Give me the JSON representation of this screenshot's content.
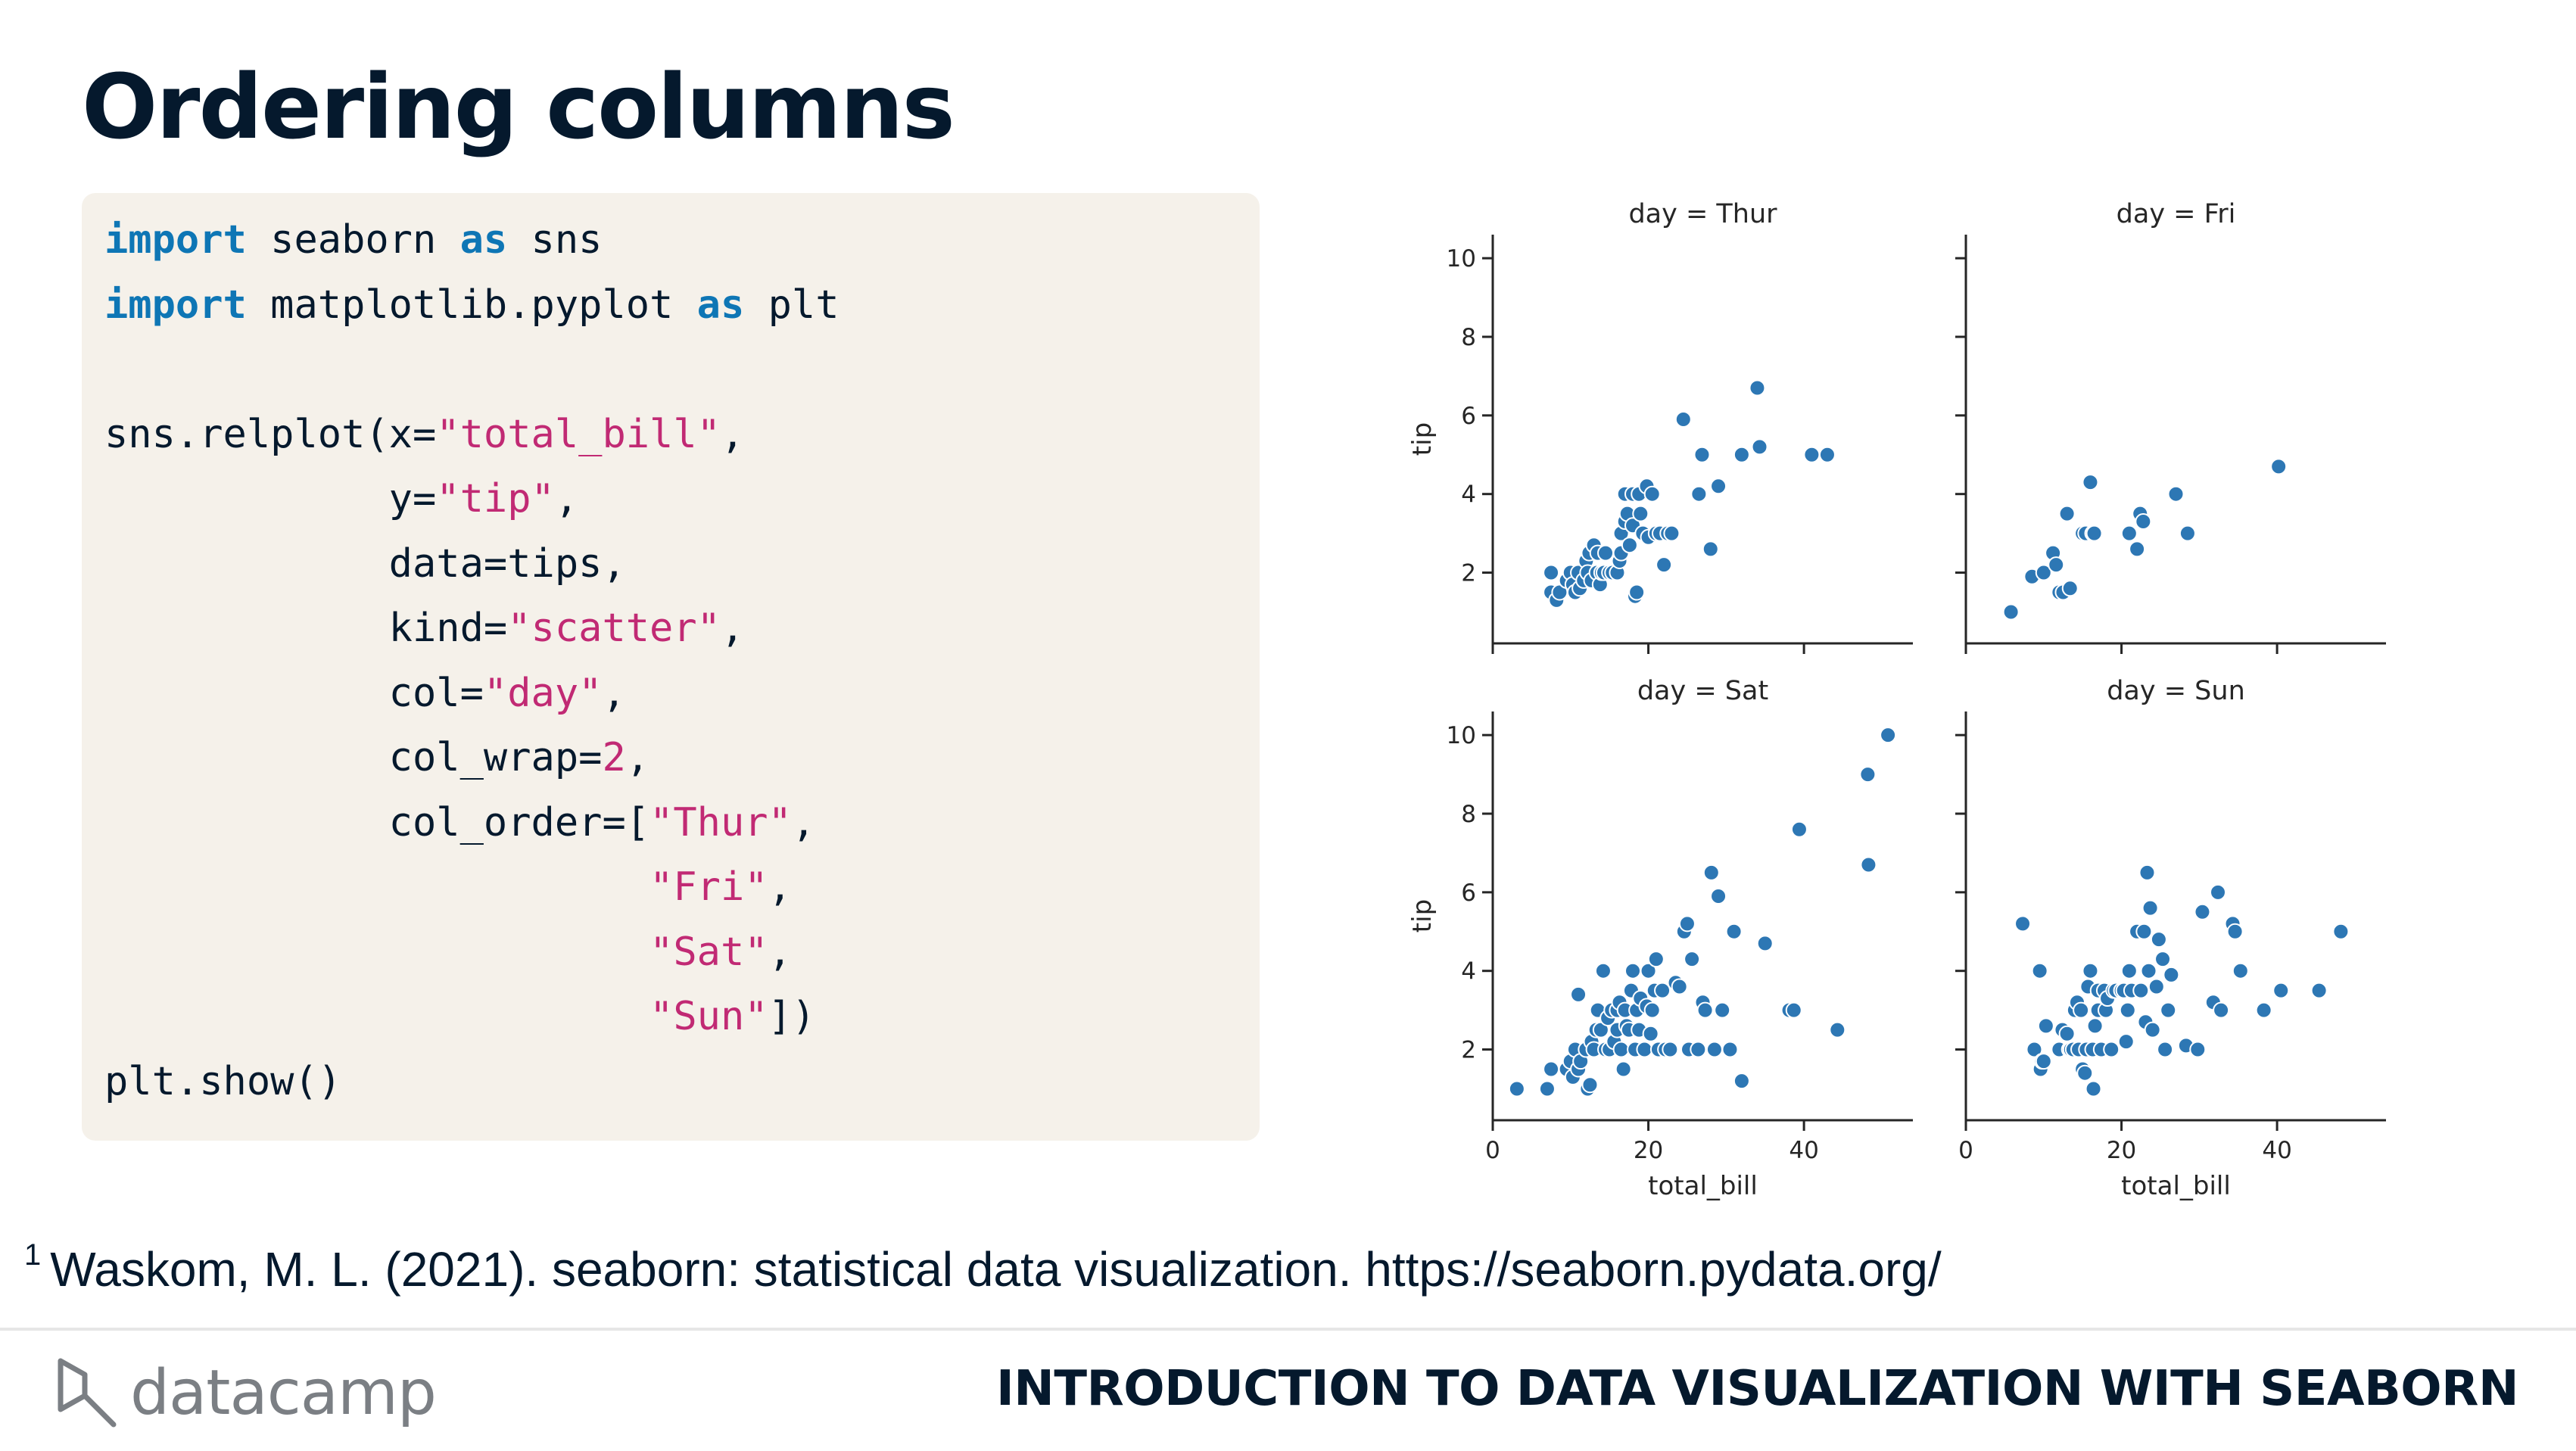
{
  "slide": {
    "title": "Ordering columns",
    "footnote_marker": "1",
    "footnote": "Waskom, M. L. (2021). seaborn: statistical data visualization. https://seaborn.pydata.org/",
    "brand": "datacamp",
    "course": "INTRODUCTION TO DATA VISUALIZATION WITH SEABORN"
  },
  "code": {
    "line1": {
      "kw1": "import",
      "mod": " seaborn ",
      "kw2": "as",
      "alias": " sns"
    },
    "line2": {
      "kw1": "import",
      "mod": " matplotlib.pyplot ",
      "kw2": "as",
      "alias": " plt"
    },
    "line3": {
      "a": "sns.relplot(x=",
      "s": "\"total_bill\"",
      "b": ","
    },
    "line4": {
      "a": "            y=",
      "s": "\"tip\"",
      "b": ","
    },
    "line5": {
      "a": "            data=tips,"
    },
    "line6": {
      "a": "            kind=",
      "s": "\"scatter\"",
      "b": ","
    },
    "line7": {
      "a": "            col=",
      "s": "\"day\"",
      "b": ","
    },
    "line8": {
      "a": "            col_wrap=",
      "n": "2",
      "b": ","
    },
    "line9": {
      "a": "            col_order=[",
      "s": "\"Thur\"",
      "b": ","
    },
    "line10": {
      "a": "                       ",
      "s": "\"Fri\"",
      "b": ","
    },
    "line11": {
      "a": "                       ",
      "s": "\"Sat\"",
      "b": ","
    },
    "line12": {
      "a": "                       ",
      "s": "\"Sun\"",
      "b": "])"
    },
    "line13": {
      "a": "plt.show()"
    }
  },
  "chart_data": {
    "type": "scatter",
    "xlabel": "total_bill",
    "ylabel": "tip",
    "xlim": [
      0,
      54
    ],
    "ylim": [
      0.2,
      10.6
    ],
    "xticks": [
      0,
      20,
      40
    ],
    "yticks": [
      2,
      4,
      6,
      8,
      10
    ],
    "grid": false,
    "point_color": "#2d77b4",
    "panels": [
      {
        "title": "day = Thur",
        "points": [
          [
            7.5,
            2.0
          ],
          [
            7.5,
            1.5
          ],
          [
            8.2,
            1.3
          ],
          [
            8.6,
            1.5
          ],
          [
            9.5,
            1.8
          ],
          [
            10,
            2.0
          ],
          [
            10.3,
            1.7
          ],
          [
            10.6,
            1.5
          ],
          [
            11,
            2.0
          ],
          [
            11.2,
            1.6
          ],
          [
            11.7,
            1.8
          ],
          [
            12,
            2.3
          ],
          [
            12.2,
            2.0
          ],
          [
            12.4,
            2.5
          ],
          [
            12.7,
            1.8
          ],
          [
            13,
            2.7
          ],
          [
            13.4,
            2.0
          ],
          [
            13.5,
            2.5
          ],
          [
            13.8,
            1.7
          ],
          [
            14,
            2.0
          ],
          [
            14.3,
            2.0
          ],
          [
            14.5,
            2.5
          ],
          [
            15,
            2.0
          ],
          [
            15.4,
            2.0
          ],
          [
            16,
            2.0
          ],
          [
            16.3,
            2.3
          ],
          [
            16.5,
            3.0
          ],
          [
            16.5,
            2.5
          ],
          [
            17,
            3.3
          ],
          [
            17,
            4.0
          ],
          [
            17.3,
            3.5
          ],
          [
            17.6,
            2.7
          ],
          [
            18,
            4.0
          ],
          [
            18,
            3.2
          ],
          [
            18.3,
            1.4
          ],
          [
            18.5,
            1.5
          ],
          [
            18.8,
            4.0
          ],
          [
            19,
            3.5
          ],
          [
            19.3,
            3.0
          ],
          [
            19.8,
            4.2
          ],
          [
            20,
            2.9
          ],
          [
            20.5,
            4.0
          ],
          [
            21,
            3.0
          ],
          [
            21.5,
            3.0
          ],
          [
            22,
            2.2
          ],
          [
            22.5,
            3.0
          ],
          [
            23,
            3.0
          ],
          [
            24.5,
            5.9
          ],
          [
            26.5,
            4.0
          ],
          [
            26.9,
            5.0
          ],
          [
            28,
            2.6
          ],
          [
            29,
            4.2
          ],
          [
            32,
            5.0
          ],
          [
            34,
            6.7
          ],
          [
            34.3,
            5.2
          ],
          [
            41,
            5.0
          ],
          [
            43,
            5.0
          ]
        ]
      },
      {
        "title": "day = Fri",
        "points": [
          [
            5.8,
            1.0
          ],
          [
            8.5,
            1.9
          ],
          [
            10,
            2.0
          ],
          [
            11.2,
            2.5
          ],
          [
            11.6,
            2.2
          ],
          [
            12,
            1.5
          ],
          [
            12.5,
            1.5
          ],
          [
            13,
            3.5
          ],
          [
            13.4,
            1.6
          ],
          [
            15,
            3.0
          ],
          [
            15.4,
            3.0
          ],
          [
            16,
            4.3
          ],
          [
            16.3,
            3.0
          ],
          [
            16.5,
            3.0
          ],
          [
            21,
            3.0
          ],
          [
            22,
            2.6
          ],
          [
            22.4,
            3.5
          ],
          [
            22.8,
            3.3
          ],
          [
            27,
            4.0
          ],
          [
            28.5,
            3.0
          ],
          [
            40.2,
            4.7
          ]
        ]
      },
      {
        "title": "day = Sat",
        "points": [
          [
            3.1,
            1.0
          ],
          [
            7,
            1.0
          ],
          [
            7.5,
            1.5
          ],
          [
            9.5,
            1.5
          ],
          [
            10,
            1.7
          ],
          [
            10.3,
            1.3
          ],
          [
            10.6,
            2.0
          ],
          [
            11,
            1.5
          ],
          [
            11,
            3.4
          ],
          [
            11.3,
            1.7
          ],
          [
            12,
            2.0
          ],
          [
            12.2,
            1.0
          ],
          [
            12.5,
            1.1
          ],
          [
            12.7,
            2.2
          ],
          [
            13,
            2.0
          ],
          [
            13.3,
            2.5
          ],
          [
            13.5,
            3.0
          ],
          [
            13.9,
            2.5
          ],
          [
            14.2,
            4.0
          ],
          [
            14.5,
            2.0
          ],
          [
            14.8,
            2.8
          ],
          [
            15,
            2.0
          ],
          [
            15.3,
            3.0
          ],
          [
            15.6,
            2.2
          ],
          [
            16,
            3.0
          ],
          [
            16,
            2.5
          ],
          [
            16.3,
            3.2
          ],
          [
            16.5,
            2.0
          ],
          [
            16.8,
            1.5
          ],
          [
            17,
            3.0
          ],
          [
            17.2,
            2.6
          ],
          [
            17.5,
            2.5
          ],
          [
            17.8,
            3.5
          ],
          [
            18,
            4.0
          ],
          [
            18.3,
            2.0
          ],
          [
            18.5,
            3.0
          ],
          [
            18.8,
            2.5
          ],
          [
            19,
            3.3
          ],
          [
            19.5,
            2.0
          ],
          [
            19.8,
            3.1
          ],
          [
            20,
            4.0
          ],
          [
            20.3,
            2.4
          ],
          [
            20.5,
            3.0
          ],
          [
            20.8,
            3.5
          ],
          [
            21,
            4.3
          ],
          [
            21.3,
            2.0
          ],
          [
            21.8,
            3.5
          ],
          [
            22.2,
            2.0
          ],
          [
            22.8,
            2.0
          ],
          [
            23.5,
            3.7
          ],
          [
            24,
            3.6
          ],
          [
            24.6,
            5.0
          ],
          [
            25,
            5.2
          ],
          [
            25.2,
            2.0
          ],
          [
            25.6,
            4.3
          ],
          [
            26.4,
            2.0
          ],
          [
            27,
            3.2
          ],
          [
            27.3,
            3.0
          ],
          [
            28.1,
            6.5
          ],
          [
            28.5,
            2.0
          ],
          [
            29,
            5.9
          ],
          [
            29.5,
            3.0
          ],
          [
            30.5,
            2.0
          ],
          [
            31,
            5.0
          ],
          [
            32,
            1.2
          ],
          [
            35,
            4.7
          ],
          [
            38.1,
            3.0
          ],
          [
            38.7,
            3.0
          ],
          [
            39.4,
            7.6
          ],
          [
            44.3,
            2.5
          ],
          [
            48.2,
            9.0
          ],
          [
            48.3,
            6.7
          ],
          [
            50.8,
            10.0
          ]
        ]
      },
      {
        "title": "day = Sun",
        "points": [
          [
            7.3,
            5.2
          ],
          [
            8.8,
            2.0
          ],
          [
            9.5,
            4.0
          ],
          [
            9.6,
            1.5
          ],
          [
            9.8,
            1.7
          ],
          [
            10,
            1.7
          ],
          [
            10.3,
            2.6
          ],
          [
            12,
            2.0
          ],
          [
            12.4,
            2.5
          ],
          [
            13,
            2.4
          ],
          [
            13.3,
            2.0
          ],
          [
            13.5,
            2.0
          ],
          [
            13.8,
            2.0
          ],
          [
            14,
            3.0
          ],
          [
            14.3,
            3.2
          ],
          [
            14.5,
            2.0
          ],
          [
            14.8,
            3.0
          ],
          [
            15,
            1.5
          ],
          [
            15.3,
            1.4
          ],
          [
            15.5,
            2.0
          ],
          [
            15.7,
            3.6
          ],
          [
            16,
            4.0
          ],
          [
            16.3,
            2.0
          ],
          [
            16.4,
            1.0
          ],
          [
            16.6,
            2.6
          ],
          [
            17,
            3.0
          ],
          [
            17,
            3.5
          ],
          [
            17.4,
            2.0
          ],
          [
            17.8,
            3.5
          ],
          [
            18,
            3.0
          ],
          [
            18.2,
            3.3
          ],
          [
            18.7,
            2.0
          ],
          [
            19,
            3.5
          ],
          [
            19.3,
            3.5
          ],
          [
            20,
            3.5
          ],
          [
            20.3,
            3.5
          ],
          [
            20.6,
            2.2
          ],
          [
            20.8,
            3.0
          ],
          [
            21,
            4.0
          ],
          [
            21.3,
            3.5
          ],
          [
            22,
            5.0
          ],
          [
            22.5,
            3.5
          ],
          [
            22.9,
            5.0
          ],
          [
            23.1,
            2.7
          ],
          [
            23.3,
            6.5
          ],
          [
            23.5,
            4.0
          ],
          [
            23.7,
            5.6
          ],
          [
            24,
            2.5
          ],
          [
            24.5,
            3.6
          ],
          [
            24.8,
            4.8
          ],
          [
            25.3,
            4.3
          ],
          [
            25.6,
            2.0
          ],
          [
            26,
            3.0
          ],
          [
            26.4,
            3.9
          ],
          [
            28.3,
            2.1
          ],
          [
            29.8,
            2.0
          ],
          [
            30.4,
            5.5
          ],
          [
            31.8,
            3.2
          ],
          [
            32.4,
            6.0
          ],
          [
            32.8,
            3.0
          ],
          [
            34.3,
            5.2
          ],
          [
            34.6,
            5.0
          ],
          [
            35.3,
            4.0
          ],
          [
            38.3,
            3.0
          ],
          [
            40.5,
            3.5
          ],
          [
            45.4,
            3.5
          ],
          [
            48.2,
            5.0
          ]
        ]
      }
    ]
  }
}
